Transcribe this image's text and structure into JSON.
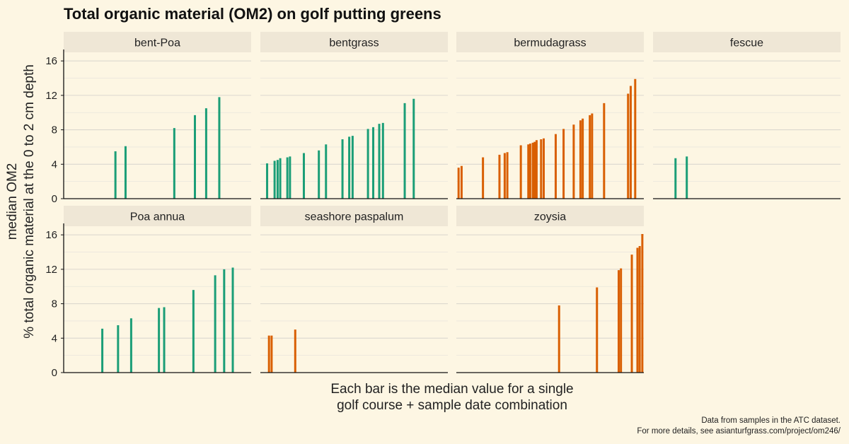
{
  "chart_data": {
    "type": "bar",
    "title": "Total organic material (OM2) on golf putting greens",
    "ylabel_lines": [
      "median OM2",
      "% total organic material at the 0 to 2 cm depth"
    ],
    "xlabel_lines": [
      "Each bar is the median value for a single",
      "golf course + sample date combination"
    ],
    "caption_lines": [
      "Data from samples in the ATC dataset.",
      "For more details, see asianturfgrass.com/project/om246/"
    ],
    "ylim": [
      0,
      17
    ],
    "yticks": [
      0,
      4,
      8,
      12,
      16
    ],
    "grid": true,
    "colors": {
      "green": "#1b9e77",
      "orange": "#d95f02",
      "strip": "#efe7d6",
      "background": "#fdf6e3"
    },
    "facets": [
      {
        "name": "bent-Poa",
        "color": "green",
        "xlim": [
          0,
          50
        ],
        "points": [
          [
            13.8,
            5.5
          ],
          [
            16.5,
            6.1
          ],
          [
            29.5,
            8.2
          ],
          [
            35,
            9.7
          ],
          [
            38,
            10.5
          ],
          [
            41.5,
            11.8
          ]
        ]
      },
      {
        "name": "bentgrass",
        "color": "green",
        "xlim": [
          0,
          50
        ],
        "points": [
          [
            1.8,
            4.1
          ],
          [
            3.8,
            4.4
          ],
          [
            4.6,
            4.5
          ],
          [
            5.3,
            4.7
          ],
          [
            7.2,
            4.8
          ],
          [
            7.9,
            4.9
          ],
          [
            11.6,
            5.3
          ],
          [
            15.6,
            5.6
          ],
          [
            17.5,
            6.3
          ],
          [
            21.9,
            6.9
          ],
          [
            23.7,
            7.2
          ],
          [
            24.6,
            7.3
          ],
          [
            28.7,
            8.1
          ],
          [
            30.1,
            8.3
          ],
          [
            31.7,
            8.7
          ],
          [
            32.7,
            8.8
          ],
          [
            38.5,
            11.1
          ],
          [
            40.9,
            11.6
          ]
        ]
      },
      {
        "name": "bermudagrass",
        "color": "orange",
        "xlim": [
          0,
          50
        ],
        "points": [
          [
            0.6,
            3.6
          ],
          [
            1.4,
            3.8
          ],
          [
            7.1,
            4.8
          ],
          [
            11.5,
            5.1
          ],
          [
            12.9,
            5.3
          ],
          [
            13.6,
            5.4
          ],
          [
            17.2,
            6.2
          ],
          [
            19.2,
            6.3
          ],
          [
            19.7,
            6.4
          ],
          [
            20.4,
            6.5
          ],
          [
            20.9,
            6.6
          ],
          [
            21.4,
            6.8
          ],
          [
            22.6,
            6.9
          ],
          [
            23.3,
            7.0
          ],
          [
            26.5,
            7.5
          ],
          [
            28.6,
            8.1
          ],
          [
            31.3,
            8.6
          ],
          [
            33.1,
            9.1
          ],
          [
            33.7,
            9.3
          ],
          [
            35.6,
            9.7
          ],
          [
            36.2,
            9.9
          ],
          [
            39.4,
            11.1
          ],
          [
            45.8,
            12.2
          ],
          [
            46.5,
            13.1
          ],
          [
            47.7,
            13.9
          ]
        ]
      },
      {
        "name": "fescue",
        "color": "green",
        "xlim": [
          0,
          50
        ],
        "points": [
          [
            6,
            4.7
          ],
          [
            9,
            4.9
          ]
        ]
      },
      {
        "name": "Poa annua",
        "color": "green",
        "xlim": [
          0,
          50
        ],
        "points": [
          [
            10.3,
            5.1
          ],
          [
            14.5,
            5.5
          ],
          [
            18,
            6.3
          ],
          [
            25.4,
            7.5
          ],
          [
            26.8,
            7.6
          ],
          [
            34.6,
            9.6
          ],
          [
            40.4,
            11.3
          ],
          [
            42.8,
            12.0
          ],
          [
            45.1,
            12.2
          ]
        ]
      },
      {
        "name": "seashore paspalum",
        "color": "orange",
        "xlim": [
          0,
          50
        ],
        "points": [
          [
            2.3,
            4.3
          ],
          [
            3,
            4.3
          ],
          [
            9.3,
            5.0
          ]
        ]
      },
      {
        "name": "zoysia",
        "color": "orange",
        "xlim": [
          0,
          50
        ],
        "points": [
          [
            27.4,
            7.8
          ],
          [
            37.5,
            9.9
          ],
          [
            43.3,
            11.9
          ],
          [
            43.9,
            12.1
          ],
          [
            46.8,
            13.7
          ],
          [
            48.3,
            14.5
          ],
          [
            48.9,
            14.7
          ],
          [
            49.6,
            16.1
          ]
        ]
      }
    ]
  }
}
